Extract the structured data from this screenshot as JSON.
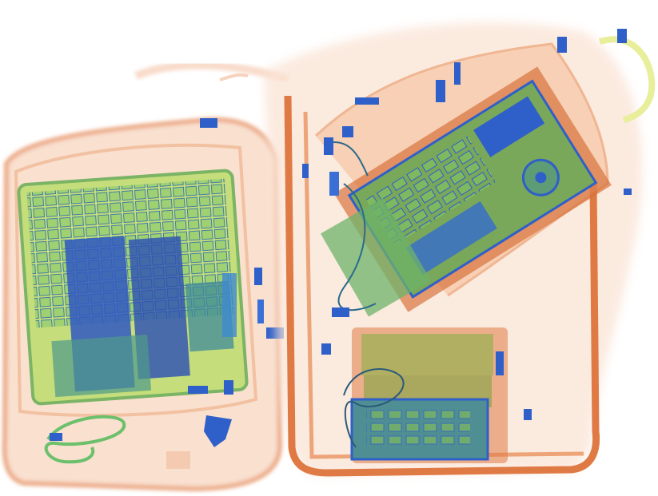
{
  "palette": {
    "background": "#ffffff",
    "organic_light": "#f6c9ac",
    "organic": "#e98a55",
    "organic_dark": "#d5622c",
    "mixed": "#8cc266",
    "mixed_light": "#c7e38a",
    "yellow": "#e6e67a",
    "metal_blue": "#2f5fc9",
    "metal_dark": "#1f3f9e",
    "teal": "#3f9a86"
  },
  "objects": {
    "left_bag": {
      "content": "laptop"
    },
    "right_bag_top": {
      "content": "motherboard"
    },
    "right_bag_bottom": {
      "content": "electronics box"
    },
    "left_bottom": {
      "content": "cable"
    }
  }
}
